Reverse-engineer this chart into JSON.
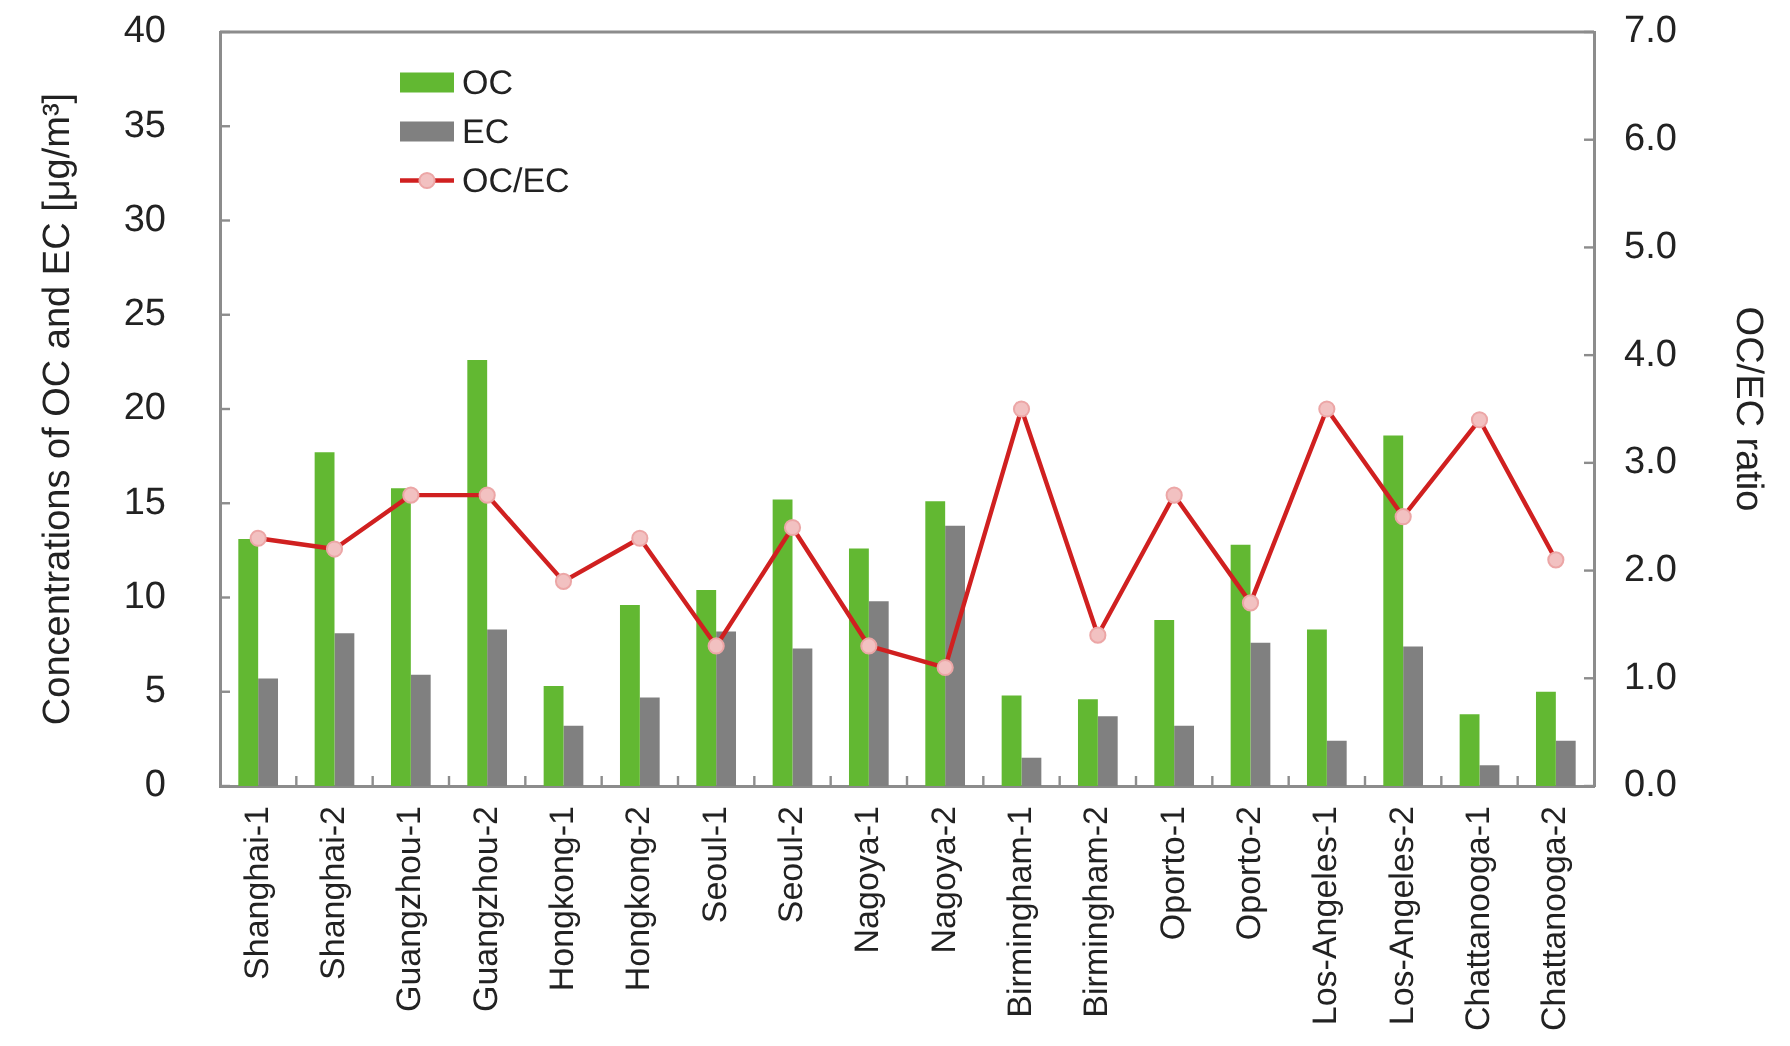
{
  "chart_data": {
    "type": "bar",
    "categories": [
      "Shanghai-1",
      "Shanghai-2",
      "Guangzhou-1",
      "Guangzhou-2",
      "Hongkong-1",
      "Hongkong-2",
      "Seoul-1",
      "Seoul-2",
      "Nagoya-1",
      "Nagoya-2",
      "Birmingham-1",
      "Birmingham-2",
      "Oporto-1",
      "Oporto-2",
      "Los-Angeles-1",
      "Los-Angeles-2",
      "Chattanooga-1",
      "Chattanooga-2"
    ],
    "series": [
      {
        "name": "OC",
        "color": "#62b832",
        "values": [
          13.1,
          17.7,
          15.8,
          22.6,
          5.3,
          9.6,
          10.4,
          15.2,
          12.6,
          15.1,
          4.8,
          4.6,
          8.8,
          12.8,
          8.3,
          18.6,
          3.8,
          5.0
        ]
      },
      {
        "name": "EC",
        "color": "#808080",
        "values": [
          5.7,
          8.1,
          5.9,
          8.3,
          3.2,
          4.7,
          8.2,
          7.3,
          9.8,
          13.8,
          1.5,
          3.7,
          3.2,
          7.6,
          2.4,
          7.4,
          1.1,
          2.4
        ]
      },
      {
        "name": "OC/EC",
        "type": "line",
        "axis": "y2",
        "color": "#d02020",
        "values": [
          2.3,
          2.2,
          2.7,
          2.7,
          1.9,
          2.3,
          1.3,
          2.4,
          1.3,
          1.1,
          3.5,
          1.4,
          2.7,
          1.7,
          3.5,
          2.5,
          3.4,
          2.1
        ]
      }
    ],
    "ylabel": "Concentrations of OC and EC [μg/m³]",
    "y2label": "OC/EC ratio",
    "ylim": [
      0,
      40
    ],
    "yticks": [
      0,
      5,
      10,
      15,
      20,
      25,
      30,
      35,
      40
    ],
    "y2lim": [
      0,
      7
    ],
    "y2ticks": [
      {
        "value": 0,
        "label": "0.0"
      },
      {
        "value": 1,
        "label": "1.0"
      },
      {
        "value": 2,
        "label": "2.0"
      },
      {
        "value": 3,
        "label": "3.0"
      },
      {
        "value": 4,
        "label": "4.0"
      },
      {
        "value": 5,
        "label": "5.0"
      },
      {
        "value": 6,
        "label": "6.0"
      },
      {
        "value": 7,
        "label": "7.0"
      }
    ],
    "legend": "top left",
    "marker": "circle",
    "grid": false
  }
}
